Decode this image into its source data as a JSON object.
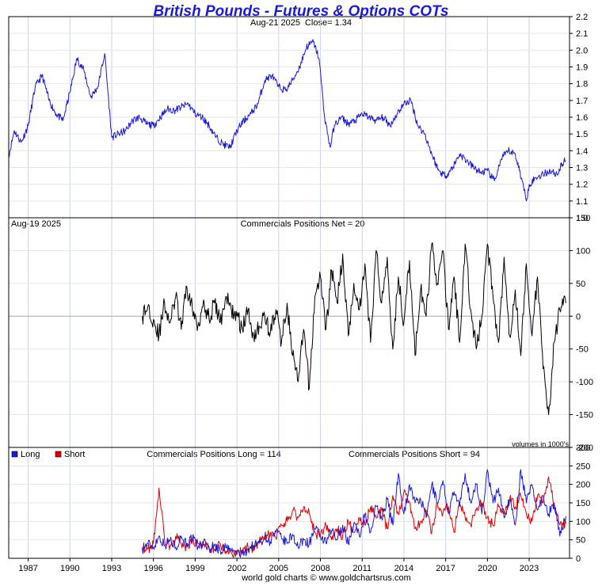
{
  "title": "British Pounds - Futures & Options COTs",
  "footer": "world gold charts © www.goldchartsrus.com",
  "colors": {
    "price": "#1a1adc",
    "net": "#000000",
    "long": "#1a1adc",
    "short": "#e00000",
    "grid": "#e6e6e6",
    "xgrid": "#c8d2f0",
    "frame": "#000000"
  },
  "chart_data": [
    {
      "type": "line",
      "panel": "price",
      "date_label": "Aug-21  2025",
      "close_label": "Close= 1.34",
      "ylim": [
        1.0,
        2.2
      ],
      "yticks": [
        "1.0",
        "1.1",
        "1.2",
        "1.3",
        "1.4",
        "1.5",
        "1.6",
        "1.7",
        "1.8",
        "1.9",
        "2.0",
        "2.1",
        "2.2"
      ],
      "grid": true,
      "x": [
        1985.6,
        1986.0,
        1986.5,
        1987.0,
        1987.5,
        1988.0,
        1988.5,
        1989.0,
        1989.5,
        1990.0,
        1990.5,
        1991.0,
        1991.5,
        1992.0,
        1992.5,
        1993.0,
        1993.5,
        1994.0,
        1994.5,
        1995.0,
        1995.5,
        1996.0,
        1996.5,
        1997.0,
        1997.5,
        1998.0,
        1998.5,
        1999.0,
        1999.5,
        2000.0,
        2000.5,
        2001.0,
        2001.5,
        2002.0,
        2002.5,
        2003.0,
        2003.5,
        2004.0,
        2004.5,
        2005.0,
        2005.5,
        2006.0,
        2006.5,
        2007.0,
        2007.5,
        2007.9,
        2008.3,
        2008.7,
        2009.0,
        2009.5,
        2010.0,
        2010.5,
        2011.0,
        2011.5,
        2012.0,
        2012.5,
        2013.0,
        2013.5,
        2014.0,
        2014.5,
        2015.0,
        2015.5,
        2016.0,
        2016.5,
        2017.0,
        2017.5,
        2018.0,
        2018.5,
        2019.0,
        2019.5,
        2020.0,
        2020.5,
        2021.0,
        2021.5,
        2022.0,
        2022.5,
        2022.8,
        2023.0,
        2023.5,
        2024.0,
        2024.5,
        2025.0,
        2025.5,
        2025.64
      ],
      "y": [
        1.37,
        1.52,
        1.45,
        1.55,
        1.78,
        1.85,
        1.7,
        1.62,
        1.58,
        1.75,
        1.95,
        1.88,
        1.72,
        1.78,
        1.98,
        1.48,
        1.5,
        1.52,
        1.58,
        1.6,
        1.56,
        1.55,
        1.6,
        1.65,
        1.64,
        1.66,
        1.68,
        1.62,
        1.6,
        1.55,
        1.48,
        1.44,
        1.42,
        1.52,
        1.58,
        1.62,
        1.68,
        1.82,
        1.85,
        1.78,
        1.76,
        1.82,
        1.9,
        2.02,
        2.05,
        1.95,
        1.6,
        1.42,
        1.55,
        1.6,
        1.56,
        1.58,
        1.62,
        1.6,
        1.58,
        1.6,
        1.55,
        1.62,
        1.68,
        1.7,
        1.55,
        1.5,
        1.38,
        1.28,
        1.25,
        1.3,
        1.38,
        1.34,
        1.3,
        1.27,
        1.28,
        1.22,
        1.35,
        1.4,
        1.38,
        1.22,
        1.1,
        1.2,
        1.24,
        1.26,
        1.28,
        1.26,
        1.34,
        1.34
      ]
    },
    {
      "type": "line",
      "panel": "net",
      "date_label": "Aug-19  2025",
      "title": "Commercials Positions Net = 20",
      "ylim": [
        -200,
        150
      ],
      "yticks": [
        "150",
        "100",
        "50",
        "0",
        "-50",
        "-100",
        "-150",
        "-200"
      ],
      "grid": true,
      "note": "volumes in 1000's",
      "x": [
        1995.2,
        1995.6,
        1996.0,
        1996.4,
        1996.8,
        1997.2,
        1997.6,
        1998.0,
        1998.4,
        1998.8,
        1999.2,
        1999.6,
        2000.0,
        2000.4,
        2000.8,
        2001.2,
        2001.6,
        2002.0,
        2002.4,
        2002.8,
        2003.2,
        2003.6,
        2004.0,
        2004.4,
        2004.8,
        2005.2,
        2005.6,
        2006.0,
        2006.4,
        2006.8,
        2007.2,
        2007.6,
        2008.0,
        2008.4,
        2008.8,
        2009.2,
        2009.6,
        2010.0,
        2010.4,
        2010.8,
        2011.2,
        2011.6,
        2012.0,
        2012.4,
        2012.8,
        2013.2,
        2013.6,
        2014.0,
        2014.4,
        2014.8,
        2015.2,
        2015.6,
        2016.0,
        2016.4,
        2016.8,
        2017.2,
        2017.6,
        2018.0,
        2018.4,
        2018.8,
        2019.2,
        2019.6,
        2020.0,
        2020.4,
        2020.8,
        2021.2,
        2021.6,
        2022.0,
        2022.4,
        2022.8,
        2023.2,
        2023.6,
        2024.0,
        2024.4,
        2024.8,
        2025.2,
        2025.64
      ],
      "y": [
        0,
        15,
        -5,
        -30,
        20,
        -10,
        30,
        -20,
        45,
        10,
        -15,
        25,
        -5,
        20,
        -10,
        30,
        10,
        0,
        -20,
        10,
        -30,
        -15,
        0,
        -25,
        10,
        -40,
        20,
        -60,
        -100,
        -20,
        -110,
        30,
        60,
        -20,
        70,
        20,
        95,
        -30,
        50,
        10,
        80,
        -40,
        100,
        20,
        90,
        -50,
        60,
        -10,
        85,
        -60,
        40,
        0,
        110,
        50,
        100,
        -20,
        60,
        -40,
        110,
        10,
        -50,
        0,
        110,
        30,
        -40,
        90,
        -30,
        40,
        -60,
        80,
        -30,
        60,
        -80,
        -150,
        -40,
        10,
        20
      ]
    },
    {
      "type": "line",
      "panel": "positions",
      "long_label": "Long",
      "short_label": "Short",
      "title_long": "Commercials Positions Long = 114",
      "title_short": "Commercials Positions Short = 94",
      "ylim": [
        0,
        300
      ],
      "yticks": [
        "0",
        "50",
        "100",
        "150",
        "200",
        "250",
        "300"
      ],
      "grid": true,
      "x_ticks": [
        "1987",
        "1990",
        "1993",
        "1996",
        "1999",
        "2002",
        "2005",
        "2008",
        "2011",
        "2014",
        "2017",
        "2020",
        "2023"
      ],
      "x_tick_years": [
        1987,
        1990,
        1993,
        1996,
        1999,
        2002,
        2005,
        2008,
        2011,
        2014,
        2017,
        2020,
        2023
      ],
      "xlim": [
        1985.6,
        2025.9
      ],
      "series": [
        {
          "name": "Long",
          "x": [
            1995.2,
            1995.6,
            1996.0,
            1996.4,
            1996.8,
            1997.2,
            1997.6,
            1998.0,
            1998.4,
            1998.8,
            1999.2,
            1999.6,
            2000.0,
            2000.4,
            2000.8,
            2001.2,
            2001.6,
            2002.0,
            2002.4,
            2002.8,
            2003.2,
            2003.6,
            2004.0,
            2004.4,
            2004.8,
            2005.2,
            2005.6,
            2006.0,
            2006.4,
            2006.8,
            2007.2,
            2007.6,
            2008.0,
            2008.4,
            2008.8,
            2009.2,
            2009.6,
            2010.0,
            2010.4,
            2010.8,
            2011.2,
            2011.6,
            2012.0,
            2012.4,
            2012.8,
            2013.2,
            2013.6,
            2014.0,
            2014.4,
            2014.8,
            2015.2,
            2015.6,
            2016.0,
            2016.4,
            2016.8,
            2017.2,
            2017.6,
            2018.0,
            2018.4,
            2018.8,
            2019.2,
            2019.6,
            2020.0,
            2020.4,
            2020.8,
            2021.2,
            2021.6,
            2022.0,
            2022.4,
            2022.8,
            2023.2,
            2023.6,
            2024.0,
            2024.4,
            2024.8,
            2025.2,
            2025.64
          ],
          "values": [
            25,
            40,
            30,
            60,
            35,
            50,
            30,
            60,
            40,
            55,
            30,
            45,
            25,
            35,
            20,
            30,
            20,
            15,
            10,
            25,
            35,
            40,
            60,
            45,
            70,
            55,
            40,
            65,
            30,
            50,
            40,
            80,
            60,
            40,
            75,
            50,
            90,
            40,
            95,
            60,
            120,
            70,
            140,
            110,
            160,
            90,
            230,
            120,
            200,
            150,
            160,
            110,
            200,
            150,
            210,
            120,
            180,
            140,
            230,
            150,
            200,
            120,
            240,
            150,
            190,
            110,
            160,
            90,
            240,
            150,
            200,
            130,
            170,
            120,
            150,
            60,
            114
          ]
        },
        {
          "name": "Short",
          "x": [
            1995.2,
            1995.6,
            1996.0,
            1996.4,
            1996.8,
            1997.2,
            1997.6,
            1998.0,
            1998.4,
            1998.8,
            1999.2,
            1999.6,
            2000.0,
            2000.4,
            2000.8,
            2001.2,
            2001.6,
            2002.0,
            2002.4,
            2002.8,
            2003.2,
            2003.6,
            2004.0,
            2004.4,
            2004.8,
            2005.2,
            2005.6,
            2006.0,
            2006.4,
            2006.8,
            2007.2,
            2007.6,
            2008.0,
            2008.4,
            2008.8,
            2009.2,
            2009.6,
            2010.0,
            2010.4,
            2010.8,
            2011.2,
            2011.6,
            2012.0,
            2012.4,
            2012.8,
            2013.2,
            2013.6,
            2014.0,
            2014.4,
            2014.8,
            2015.2,
            2015.6,
            2016.0,
            2016.4,
            2016.8,
            2017.2,
            2017.6,
            2018.0,
            2018.4,
            2018.8,
            2019.2,
            2019.6,
            2020.0,
            2020.4,
            2020.8,
            2021.2,
            2021.6,
            2022.0,
            2022.4,
            2022.8,
            2023.2,
            2023.6,
            2024.0,
            2024.4,
            2024.8,
            2025.2,
            2025.64
          ],
          "values": [
            30,
            25,
            40,
            190,
            50,
            35,
            60,
            40,
            30,
            45,
            40,
            35,
            30,
            25,
            40,
            20,
            15,
            10,
            20,
            30,
            25,
            45,
            50,
            70,
            55,
            90,
            100,
            130,
            110,
            140,
            120,
            70,
            60,
            90,
            50,
            80,
            60,
            100,
            70,
            110,
            90,
            140,
            110,
            130,
            80,
            170,
            120,
            180,
            150,
            80,
            100,
            130,
            70,
            150,
            120,
            140,
            70,
            150,
            110,
            90,
            130,
            150,
            110,
            90,
            140,
            120,
            160,
            140,
            170,
            120,
            100,
            170,
            150,
            220,
            140,
            90,
            94
          ]
        }
      ]
    }
  ]
}
